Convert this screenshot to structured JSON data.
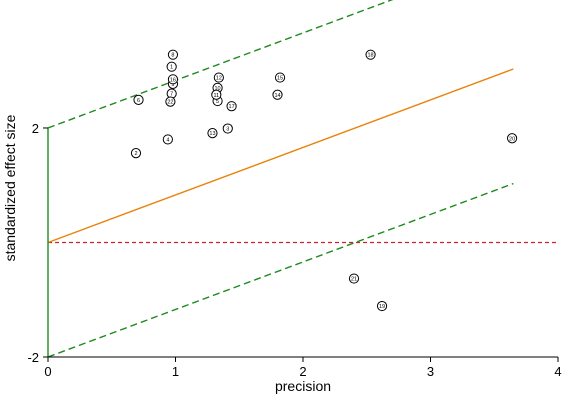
{
  "chart_data": {
    "type": "scatter",
    "title": "",
    "xlabel": "precision",
    "ylabel": "standardized effect size",
    "xlim": [
      0,
      4
    ],
    "ylim": [
      -2,
      4.2
    ],
    "xticks": [
      "0",
      "1",
      "2",
      "3",
      "4"
    ],
    "yticks": [
      "-2",
      "2"
    ],
    "grid": false,
    "legend": "none",
    "colors": {
      "regression": "#e8820a",
      "confidence": "#1e8a1e",
      "null_line": "#cc2233",
      "y_axis": "#1e8a1e",
      "point_outline": "#000000"
    },
    "points": [
      {
        "label": "1",
        "x": 0.97,
        "y": 3.07
      },
      {
        "label": "2",
        "x": 0.69,
        "y": 1.56
      },
      {
        "label": "3",
        "x": 1.41,
        "y": 1.99
      },
      {
        "label": "4",
        "x": 0.94,
        "y": 1.8
      },
      {
        "label": "5",
        "x": 1.33,
        "y": 2.47
      },
      {
        "label": "6",
        "x": 0.71,
        "y": 2.49
      },
      {
        "label": "7",
        "x": 0.97,
        "y": 2.6
      },
      {
        "label": "8",
        "x": 0.98,
        "y": 3.28
      },
      {
        "label": "9",
        "x": 0.98,
        "y": 2.77
      },
      {
        "label": "10",
        "x": 1.33,
        "y": 2.7
      },
      {
        "label": "11",
        "x": 1.32,
        "y": 2.58
      },
      {
        "label": "12",
        "x": 1.34,
        "y": 2.88
      },
      {
        "label": "13",
        "x": 1.29,
        "y": 1.91
      },
      {
        "label": "14",
        "x": 1.8,
        "y": 2.58
      },
      {
        "label": "15",
        "x": 1.82,
        "y": 2.88
      },
      {
        "label": "16",
        "x": 0.98,
        "y": 2.85
      },
      {
        "label": "17",
        "x": 1.44,
        "y": 2.38
      },
      {
        "label": "18",
        "x": 2.53,
        "y": 3.28
      },
      {
        "label": "19",
        "x": 2.62,
        "y": -1.11
      },
      {
        "label": "20",
        "x": 3.64,
        "y": 1.82
      },
      {
        "label": "21",
        "x": 2.4,
        "y": -0.63
      },
      {
        "label": "22",
        "x": 0.96,
        "y": 2.46
      }
    ],
    "regression": {
      "intercept": 0.0,
      "slope": 0.83
    },
    "confidence_band": {
      "offset": 2.0
    },
    "null_line_y": 0
  }
}
